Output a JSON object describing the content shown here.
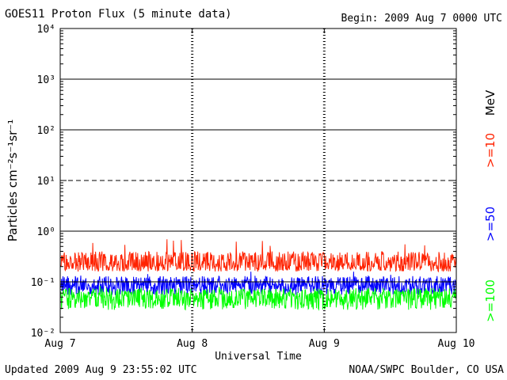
{
  "header": {
    "title": "GOES11 Proton Flux (5 minute data)",
    "begin": "Begin: 2009 Aug 7 0000 UTC"
  },
  "footer": {
    "updated": "Updated 2009 Aug  9 23:55:02 UTC",
    "credit": "NOAA/SWPC Boulder, CO USA"
  },
  "chart_data": {
    "type": "line",
    "title": "GOES11 Proton Flux (5 minute data)",
    "xlabel": "Universal Time",
    "ylabel": "Particles cm⁻²s⁻¹sr⁻¹",
    "yscale": "log",
    "ylim": [
      0.01,
      10000
    ],
    "y_ticks": [
      {
        "value": 10000,
        "label": "10⁴"
      },
      {
        "value": 1000,
        "label": "10³"
      },
      {
        "value": 100,
        "label": "10²"
      },
      {
        "value": 10,
        "label": "10¹"
      },
      {
        "value": 1,
        "label": "10⁰"
      },
      {
        "value": 0.1,
        "label": "10⁻¹"
      },
      {
        "value": 0.01,
        "label": "10⁻²"
      }
    ],
    "xlim": [
      "2009-08-07",
      "2009-08-10"
    ],
    "x_ticks": [
      {
        "value": "2009-08-07",
        "label": "Aug 7"
      },
      {
        "value": "2009-08-08",
        "label": "Aug 8"
      },
      {
        "value": "2009-08-09",
        "label": "Aug 9"
      },
      {
        "value": "2009-08-10",
        "label": "Aug 10"
      }
    ],
    "units_label": "MeV",
    "threshold_lines": [
      {
        "value": 1000,
        "style": "solid"
      },
      {
        "value": 100,
        "style": "solid"
      },
      {
        "value": 10,
        "style": "dashed"
      },
      {
        "value": 1,
        "style": "solid"
      },
      {
        "value": 0.1,
        "style": "solid"
      }
    ],
    "series": [
      {
        "name": ">=10",
        "color": "#ff2200",
        "typical": 0.22,
        "low": 0.16,
        "high": 0.4,
        "peak": 0.72
      },
      {
        "name": ">=50",
        "color": "#0000ff",
        "typical": 0.085,
        "low": 0.055,
        "high": 0.13,
        "peak": 0.16
      },
      {
        "name": ">=100",
        "color": "#00ff00",
        "typical": 0.05,
        "low": 0.028,
        "high": 0.075,
        "peak": 0.09
      }
    ]
  }
}
